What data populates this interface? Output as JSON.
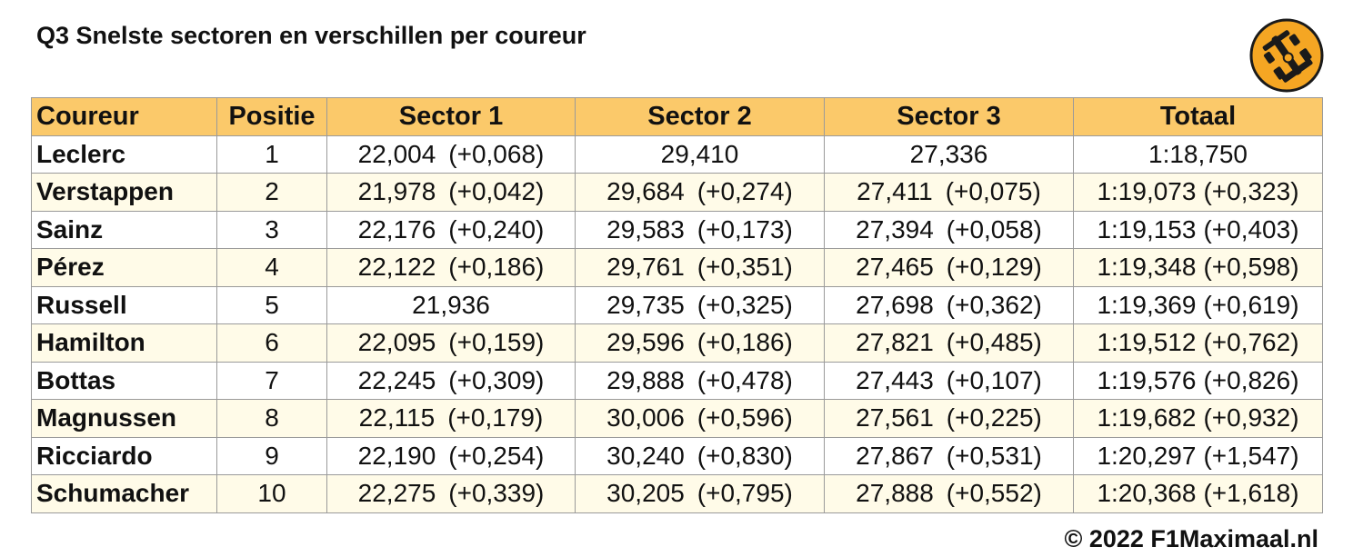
{
  "title": "Q3 Snelste sectoren en verschillen per coureur",
  "logo_icon": "race-car-icon",
  "colors": {
    "header": "#fbc96a",
    "alt_row": "#fffbe8",
    "logo_bg": "#f5a623"
  },
  "columns": [
    "Coureur",
    "Positie",
    "Sector 1",
    "Sector 2",
    "Sector 3",
    "Totaal"
  ],
  "rows": [
    {
      "driver": "Leclerc",
      "pos": "1",
      "s1": "22,004",
      "s1_diff": "(+0,068)",
      "s2": "29,410",
      "s2_diff": "",
      "s3": "27,336",
      "s3_diff": "",
      "total": "1:18,750",
      "total_diff": ""
    },
    {
      "driver": "Verstappen",
      "pos": "2",
      "s1": "21,978",
      "s1_diff": "(+0,042)",
      "s2": "29,684",
      "s2_diff": "(+0,274)",
      "s3": "27,411",
      "s3_diff": "(+0,075)",
      "total": "1:19,073",
      "total_diff": "(+0,323)"
    },
    {
      "driver": "Sainz",
      "pos": "3",
      "s1": "22,176",
      "s1_diff": "(+0,240)",
      "s2": "29,583",
      "s2_diff": "(+0,173)",
      "s3": "27,394",
      "s3_diff": "(+0,058)",
      "total": "1:19,153",
      "total_diff": "(+0,403)"
    },
    {
      "driver": "Pérez",
      "pos": "4",
      "s1": "22,122",
      "s1_diff": "(+0,186)",
      "s2": "29,761",
      "s2_diff": "(+0,351)",
      "s3": "27,465",
      "s3_diff": "(+0,129)",
      "total": "1:19,348",
      "total_diff": "(+0,598)"
    },
    {
      "driver": "Russell",
      "pos": "5",
      "s1": "21,936",
      "s1_diff": "",
      "s2": "29,735",
      "s2_diff": "(+0,325)",
      "s3": "27,698",
      "s3_diff": "(+0,362)",
      "total": "1:19,369",
      "total_diff": "(+0,619)"
    },
    {
      "driver": "Hamilton",
      "pos": "6",
      "s1": "22,095",
      "s1_diff": "(+0,159)",
      "s2": "29,596",
      "s2_diff": "(+0,186)",
      "s3": "27,821",
      "s3_diff": "(+0,485)",
      "total": "1:19,512",
      "total_diff": "(+0,762)"
    },
    {
      "driver": "Bottas",
      "pos": "7",
      "s1": "22,245",
      "s1_diff": "(+0,309)",
      "s2": "29,888",
      "s2_diff": "(+0,478)",
      "s3": "27,443",
      "s3_diff": "(+0,107)",
      "total": "1:19,576",
      "total_diff": "(+0,826)"
    },
    {
      "driver": "Magnussen",
      "pos": "8",
      "s1": "22,115",
      "s1_diff": "(+0,179)",
      "s2": "30,006",
      "s2_diff": "(+0,596)",
      "s3": "27,561",
      "s3_diff": "(+0,225)",
      "total": "1:19,682",
      "total_diff": "(+0,932)"
    },
    {
      "driver": "Ricciardo",
      "pos": "9",
      "s1": "22,190",
      "s1_diff": "(+0,254)",
      "s2": "30,240",
      "s2_diff": "(+0,830)",
      "s3": "27,867",
      "s3_diff": "(+0,531)",
      "total": "1:20,297",
      "total_diff": "(+1,547)"
    },
    {
      "driver": "Schumacher",
      "pos": "10",
      "s1": "22,275",
      "s1_diff": "(+0,339)",
      "s2": "30,205",
      "s2_diff": "(+0,795)",
      "s3": "27,888",
      "s3_diff": "(+0,552)",
      "total": "1:20,368",
      "total_diff": "(+1,618)"
    }
  ],
  "footer": "© 2022 F1Maximaal.nl"
}
